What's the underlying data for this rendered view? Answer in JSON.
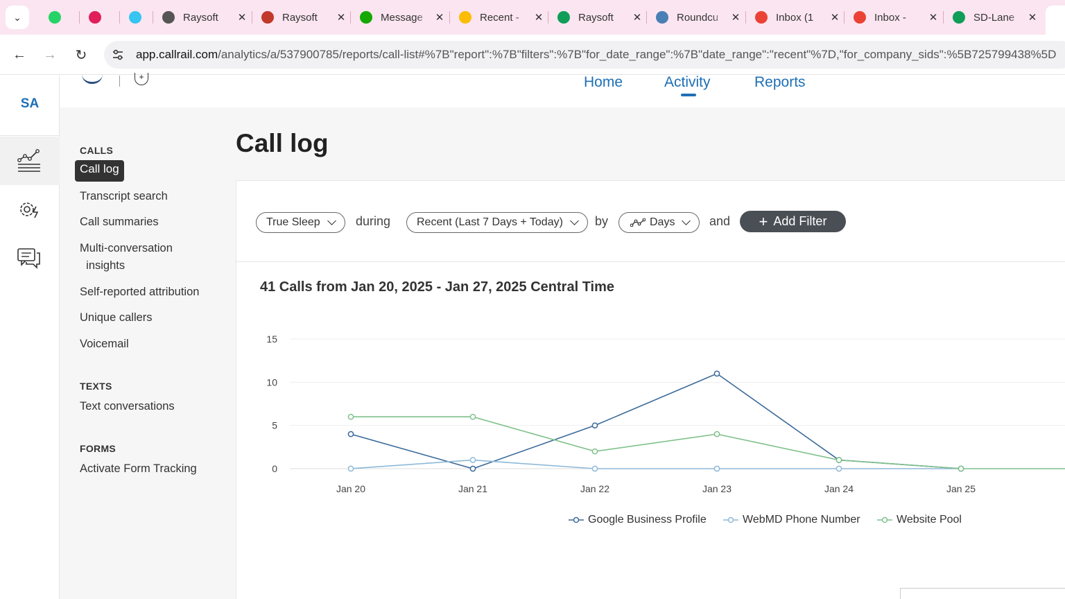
{
  "browser": {
    "tabs": [
      {
        "title": "",
        "icon": "whatsapp-icon",
        "color": "#25d366"
      },
      {
        "title": "",
        "icon": "slack-icon",
        "color": "#e01e5a"
      },
      {
        "title": "",
        "icon": "slack-icon",
        "color": "#36c5f0"
      },
      {
        "title": "Raysoft",
        "icon": "globe-icon",
        "color": "#555555"
      },
      {
        "title": "Raysoft",
        "icon": "raysoft-icon",
        "color": "#c0392b"
      },
      {
        "title": "Message",
        "icon": "upwork-icon",
        "color": "#14a800"
      },
      {
        "title": "Recent -",
        "icon": "google-drive-icon",
        "color": "#fbbc04"
      },
      {
        "title": "Raysoft",
        "icon": "google-sheets-icon",
        "color": "#0f9d58"
      },
      {
        "title": "Roundcu",
        "icon": "roundcube-icon",
        "color": "#4a7fb5"
      },
      {
        "title": "Inbox (1",
        "icon": "gmail-icon",
        "color": "#ea4335"
      },
      {
        "title": "Inbox -",
        "icon": "gmail-icon",
        "color": "#ea4335"
      },
      {
        "title": "SD-Lane",
        "icon": "google-sheets-icon",
        "color": "#0f9d58"
      }
    ],
    "url_host": "app.callrail.com",
    "url_path": "/analytics/a/537900785/reports/call-list#%7B\"report\":%7B\"filters\":%7B\"for_date_range\":%7B\"date_range\":\"recent\"%7D,\"for_company_sids\":%5B725799438%5D"
  },
  "rail": {
    "initials": "SA"
  },
  "topnav": {
    "home": "Home",
    "activity": "Activity",
    "reports": "Reports"
  },
  "sidebar": {
    "calls_heading": "CALLS",
    "active_item": "Call log",
    "call_items": [
      "Transcript search",
      "Call summaries",
      "Multi-conversation\n  insights",
      "Self-reported attribution",
      "Unique callers",
      "Voicemail"
    ],
    "texts_heading": "TEXTS",
    "text_items": [
      "Text conversations"
    ],
    "forms_heading": "FORMS",
    "form_items": [
      "Activate Form Tracking"
    ]
  },
  "page": {
    "title": "Call log"
  },
  "filters": {
    "company": "True Sleep",
    "during": "during",
    "date_range": "Recent (Last 7 Days + Today)",
    "by": "by",
    "granularity": "Days",
    "and": "and",
    "add_filter": "Add Filter"
  },
  "chart_data": {
    "type": "line",
    "title": "41 Calls from Jan 20, 2025 - Jan 27, 2025 Central Time",
    "categories": [
      "Jan 20",
      "Jan 21",
      "Jan 22",
      "Jan 23",
      "Jan 24",
      "Jan 25"
    ],
    "yticks": [
      0,
      5,
      10,
      15
    ],
    "ylim": [
      0,
      15
    ],
    "grid": true,
    "legend_position": "bottom",
    "series": [
      {
        "name": "Google Business Profile",
        "color": "#3b6a9a",
        "values": [
          4,
          0,
          5,
          11,
          1,
          0
        ]
      },
      {
        "name": "WebMD Phone Number",
        "color": "#8db9d8",
        "values": [
          0,
          1,
          0,
          0,
          0,
          0
        ]
      },
      {
        "name": "Website Pool",
        "color": "#7fc18a",
        "values": [
          6,
          6,
          2,
          4,
          1,
          0
        ]
      }
    ]
  }
}
